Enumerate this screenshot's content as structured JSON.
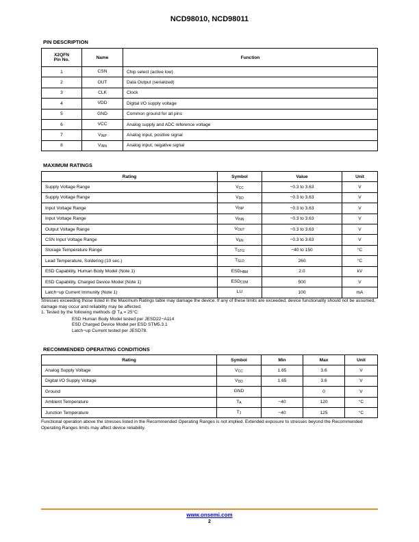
{
  "header": {
    "title": "NCD98010, NCD98011"
  },
  "pin_description": {
    "title": "PIN DESCRIPTION",
    "headers": [
      "X2QFN Pin No.",
      "Name",
      "Function"
    ],
    "rows": [
      [
        "1",
        "CSN",
        "",
        "Chip select (active low)"
      ],
      [
        "2",
        "OUT",
        "",
        "Data Output (serialized)"
      ],
      [
        "3",
        "CLK",
        "",
        "Clock"
      ],
      [
        "4",
        "VDD",
        "",
        "Digital I/O supply voltage"
      ],
      [
        "5",
        "GND",
        "",
        "Common ground for all pins"
      ],
      [
        "6",
        "VCC",
        "",
        "Analog supply and ADC reference voltage"
      ],
      [
        "7",
        "V",
        "INP",
        "Analog input, positive signal"
      ],
      [
        "8",
        "V",
        "INN",
        "Analog input, negative signal"
      ]
    ]
  },
  "max_ratings": {
    "title": "MAXIMUM RATINGS",
    "headers": [
      "Rating",
      "Symbol",
      "Value",
      "Unit"
    ],
    "rows": [
      [
        "Supply Voltage Range",
        "V",
        "CC",
        "−0.3 to 3.63",
        "V"
      ],
      [
        "Supply Voltage Range",
        "V",
        "DD",
        "−0.3 to 3.63",
        "V"
      ],
      [
        "Input Voltage Range",
        "V",
        "INP",
        "−0.3 to 3.63",
        "V"
      ],
      [
        "Input Voltage Range",
        "V",
        "INN",
        "−0.3 to 3.63",
        "V"
      ],
      [
        "Output Voltage Range",
        "V",
        "OUT",
        "−0.3 to 3.63",
        "V"
      ],
      [
        "CSN Input Voltage Range",
        "V",
        "EN",
        "−0.3 to 3.63",
        "V"
      ],
      [
        "Storage Temperature Range",
        "T",
        "STG",
        "−40 to 150",
        "°C"
      ],
      [
        "Lead Temperature, Soldering (10 sec.)",
        "T",
        "SLD",
        "260",
        "°C"
      ],
      [
        "ESD Capability, Human Body Model (Note 1)",
        "ESD",
        "HBM",
        "2.0",
        "kV"
      ],
      [
        "ESD Capability, Charged Device Model (Note 1)",
        "ESD",
        "CDM",
        "500",
        "V"
      ],
      [
        "Latch−up Current Immunity (Note 1)",
        "LU",
        "",
        "100",
        "mA"
      ]
    ],
    "stress_note": "Stresses exceeding those listed in the Maximum Ratings table may damage the device. If any of these limits are exceeded, device functionality should not be assumed, damage may occur and reliability may be affected.",
    "note1_prefix": "1.  Tested by the following methods @ T",
    "note1_sub": "A",
    "note1_suffix": " = 25°C:",
    "note1_lines": [
      "ESD Human Body Model tested per JESD22−A114",
      "ESD Charged Device Model per ESD STM5.3.1",
      "Latch−up Current tested per JESD78."
    ]
  },
  "rec_conditions": {
    "title": "RECOMMENDED OPERATING CONDITIONS",
    "headers": [
      "Rating",
      "Symbol",
      "Min",
      "Max",
      "Unit"
    ],
    "rows": [
      [
        "Analog Supply Voltage",
        "V",
        "CC",
        "1.65",
        "3.6",
        "V"
      ],
      [
        "Digital I/O Supply Voltage",
        "V",
        "DD",
        "1.65",
        "3.6",
        "V"
      ],
      [
        "Ground",
        "GND",
        "",
        "",
        "0",
        "V"
      ],
      [
        "Ambient Temperature",
        "T",
        "A",
        "−40",
        "120",
        "°C"
      ],
      [
        "Junction Temperature",
        "T",
        "J",
        "−40",
        "125",
        "°C"
      ]
    ],
    "note": "Functional operation above the stresses listed in the Recommended Operating Ranges is not implied. Extended exposure to stresses beyond the Recommended Operating Ranges limits may affect device reliability."
  },
  "footer": {
    "url": "www.onsemi.com",
    "page": "2",
    "rule_color": "#f08a24"
  }
}
